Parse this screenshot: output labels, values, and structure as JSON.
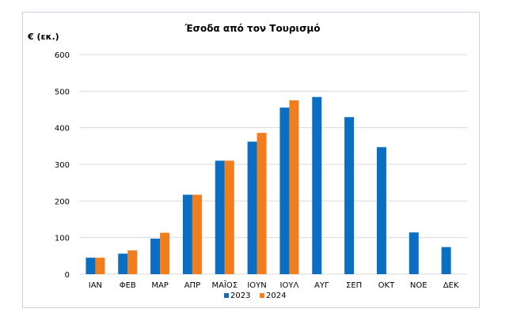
{
  "chart_data": {
    "type": "bar",
    "title": "Έσοδα από τον Τουρισμό",
    "ylabel": "€ (εκ.)",
    "xlabel": "",
    "categories": [
      "ΙΑΝ",
      "ΦΕΒ",
      "ΜΑΡ",
      "ΑΠΡ",
      "ΜΑΪΟΣ",
      "ΙΟΥΝ",
      "ΙΟΥΛ",
      "ΑΥΓ",
      "ΣΕΠ",
      "ΟΚΤ",
      "ΝΟΕ",
      "ΔΕΚ"
    ],
    "series": [
      {
        "name": "2023",
        "color": "#0a6fc2",
        "values": [
          45,
          56,
          97,
          217,
          310,
          362,
          455,
          484,
          429,
          347,
          114,
          74
        ]
      },
      {
        "name": "2024",
        "color": "#f07e1d",
        "values": [
          45,
          65,
          113,
          217,
          310,
          386,
          475,
          null,
          null,
          null,
          null,
          null
        ]
      }
    ],
    "ylim": [
      0,
      600
    ],
    "yticks": [
      0,
      100,
      200,
      300,
      400,
      500,
      600
    ],
    "grid": true,
    "legend": "bottom"
  }
}
